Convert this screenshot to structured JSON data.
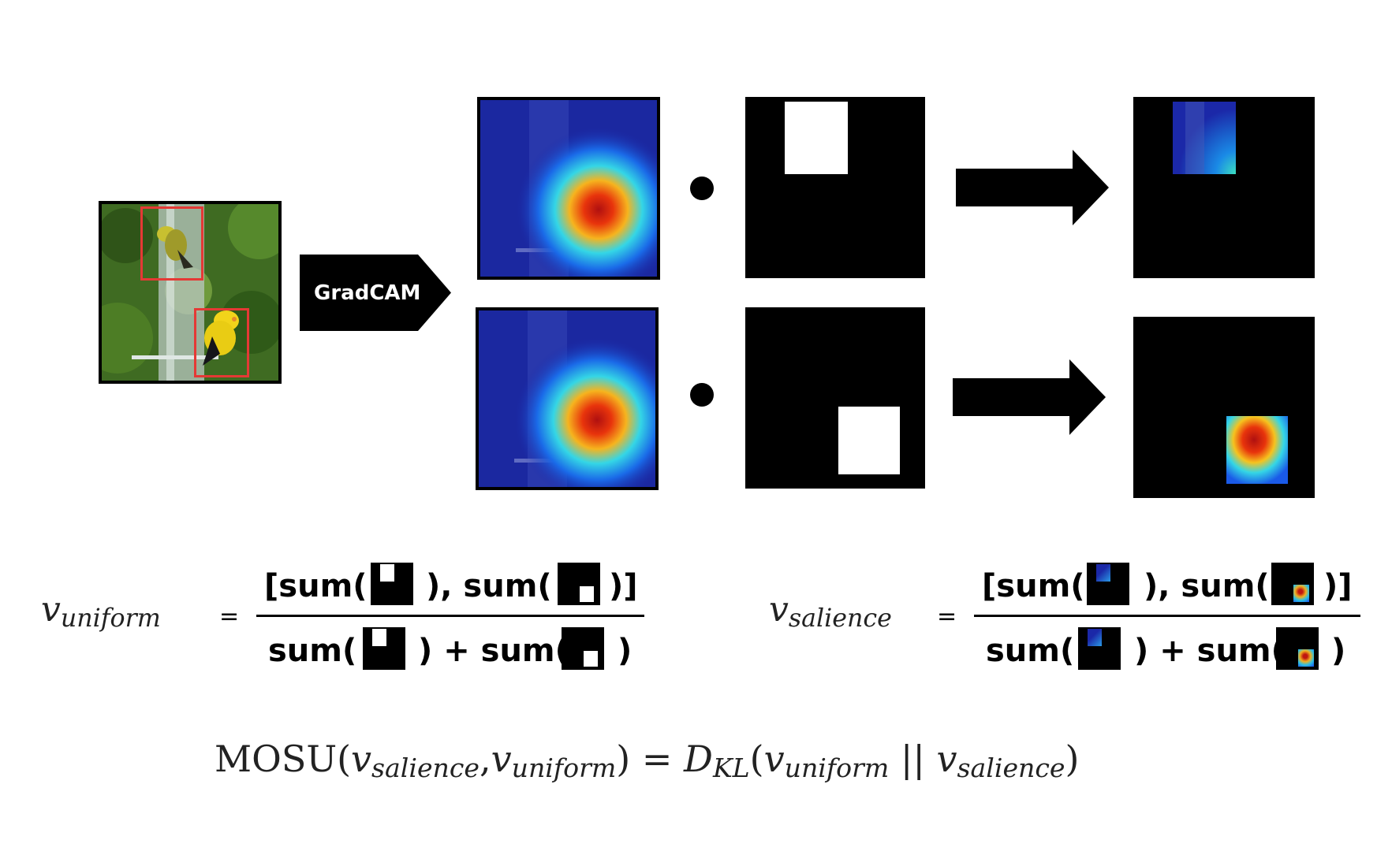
{
  "pipeline": {
    "gradcam_label": "GradCAM"
  },
  "formula_uniform": {
    "lhs_symbol": "v",
    "lhs_subscript": "uniform",
    "equals": "=",
    "num_open": "[sum(",
    "num_mid": "), sum(",
    "num_close": ")]",
    "den_open": "sum(",
    "den_mid": ") + sum(",
    "den_close": ")"
  },
  "formula_salience": {
    "lhs_symbol": "v",
    "lhs_subscript": "salience",
    "equals": "=",
    "num_open": "[sum(",
    "num_mid": "), sum(",
    "num_close": ")]",
    "den_open": "sum(",
    "den_mid": ") + sum(",
    "den_close": ")"
  },
  "mosu": {
    "name": "MOSU",
    "open": "(",
    "arg1_symbol": "v",
    "arg1_sub": "salience",
    "comma": ",",
    "arg2_symbol": "v",
    "arg2_sub": "uniform",
    "close": ")",
    "equals": "=",
    "d_symbol": "D",
    "d_sub": "KL",
    "open2": "(",
    "arg3_symbol": "v",
    "arg3_sub": "uniform",
    "bars": "||",
    "arg4_symbol": "v",
    "arg4_sub": "salience",
    "close2": ")"
  },
  "colors": {
    "box_outline": "#e53935",
    "heat_low": "#1a2aa8",
    "heat_high": "#d81c0c"
  }
}
